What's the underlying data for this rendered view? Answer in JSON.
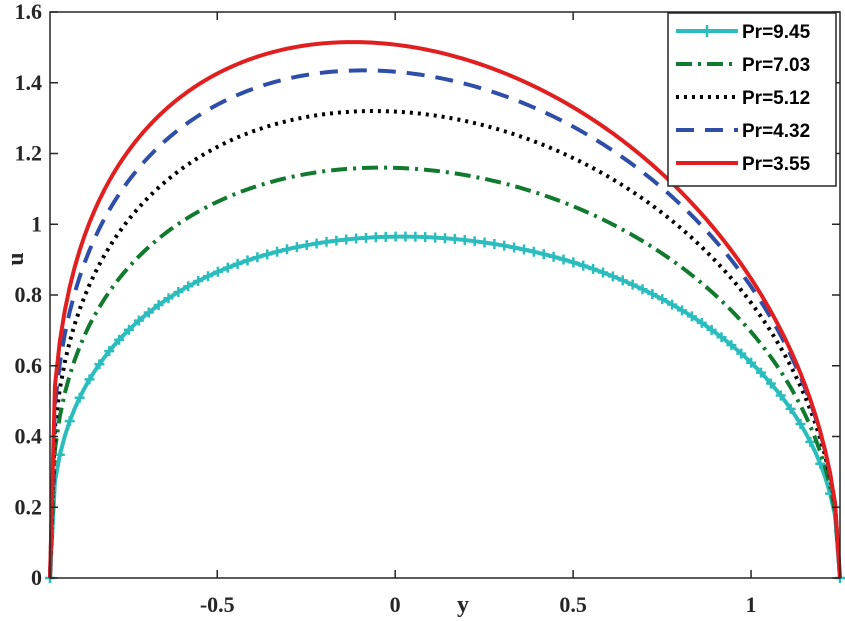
{
  "chart_data": {
    "type": "line",
    "title": "",
    "xlabel": "y",
    "ylabel": "u",
    "xlim": [
      -0.97,
      1.25
    ],
    "ylim": [
      0,
      1.6
    ],
    "xticks": [
      -0.5,
      0,
      0.5,
      1
    ],
    "xtick_labels": [
      "-0.5",
      "0",
      "0.5",
      "1"
    ],
    "yticks": [
      0,
      0.2,
      0.4,
      0.6,
      0.8,
      1,
      1.2,
      1.4,
      1.6
    ],
    "ytick_labels": [
      "0",
      "0.2",
      "0.4",
      "0.6",
      "0.8",
      "1",
      "1.2",
      "1.4",
      "1.6"
    ],
    "legend_position": "top-right",
    "series": [
      {
        "name": "Pr=9.45",
        "color": "#2bbdbd",
        "dash": "solid",
        "marker": "plus",
        "y_start": -0.97,
        "y_end": 1.25,
        "peak_y": 0.02,
        "peak_u": 0.965
      },
      {
        "name": "Pr=7.03",
        "color": "#127a2e",
        "dash": "dashdot",
        "marker": "none",
        "y_start": -0.97,
        "y_end": 1.25,
        "peak_y": -0.04,
        "peak_u": 1.16
      },
      {
        "name": "Pr=5.12",
        "color": "#000000",
        "dash": "dotted",
        "marker": "none",
        "y_start": -0.97,
        "y_end": 1.25,
        "peak_y": -0.06,
        "peak_u": 1.32
      },
      {
        "name": "Pr=4.32",
        "color": "#2e4ea8",
        "dash": "dashed",
        "marker": "none",
        "y_start": -0.97,
        "y_end": 1.25,
        "peak_y": -0.09,
        "peak_u": 1.435
      },
      {
        "name": "Pr=3.55",
        "color": "#e02020",
        "dash": "solid",
        "marker": "none",
        "y_start": -0.97,
        "y_end": 1.25,
        "peak_y": -0.12,
        "peak_u": 1.515
      }
    ]
  }
}
